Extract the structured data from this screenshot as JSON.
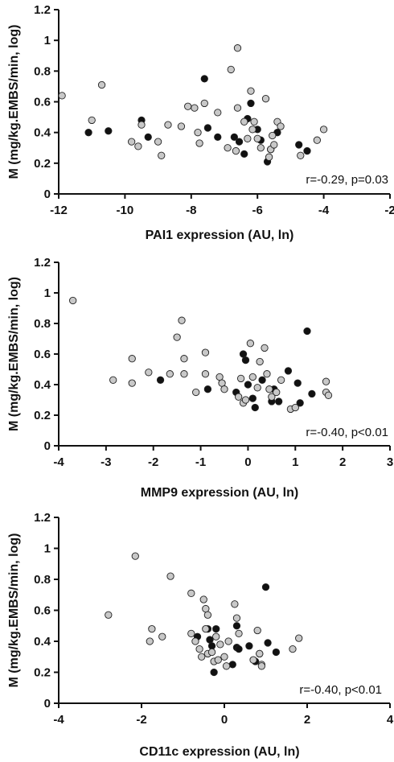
{
  "colors": {
    "filled": "#111111",
    "open": "#c8c8c8",
    "stroke": "#222222"
  },
  "chart_data": [
    {
      "type": "scatter",
      "xlabel": "PAI1 expression (AU, ln)",
      "ylabel": "M (mg/kg.EMBS/min, log)",
      "xlim": [
        -12,
        -2
      ],
      "ylim": [
        0,
        1.2
      ],
      "xticks": [
        "-12",
        "-10",
        "-8",
        "-6",
        "-4",
        "-2"
      ],
      "yticks": [
        "0",
        "0.2",
        "0.4",
        "0.6",
        "0.8",
        "1",
        "1.2"
      ],
      "annotation": "r=-0.29, p=0.03",
      "series": [
        {
          "style": "filled",
          "points": [
            [
              -11.1,
              0.4
            ],
            [
              -10.5,
              0.41
            ],
            [
              -9.5,
              0.48
            ],
            [
              -9.3,
              0.37
            ],
            [
              -7.6,
              0.75
            ],
            [
              -7.5,
              0.43
            ],
            [
              -7.2,
              0.37
            ],
            [
              -6.7,
              0.37
            ],
            [
              -6.55,
              0.34
            ],
            [
              -6.4,
              0.26
            ],
            [
              -6.3,
              0.49
            ],
            [
              -6.2,
              0.59
            ],
            [
              -6.0,
              0.42
            ],
            [
              -5.9,
              0.35
            ],
            [
              -5.7,
              0.21
            ],
            [
              -5.6,
              0.29
            ],
            [
              -5.4,
              0.4
            ],
            [
              -4.75,
              0.32
            ],
            [
              -4.5,
              0.28
            ]
          ]
        },
        {
          "style": "open",
          "points": [
            [
              -11.9,
              0.64
            ],
            [
              -11.0,
              0.48
            ],
            [
              -10.7,
              0.71
            ],
            [
              -9.8,
              0.34
            ],
            [
              -9.6,
              0.31
            ],
            [
              -9.5,
              0.45
            ],
            [
              -9.0,
              0.34
            ],
            [
              -8.9,
              0.25
            ],
            [
              -8.7,
              0.45
            ],
            [
              -8.3,
              0.44
            ],
            [
              -8.1,
              0.57
            ],
            [
              -7.9,
              0.56
            ],
            [
              -7.8,
              0.4
            ],
            [
              -7.75,
              0.33
            ],
            [
              -7.6,
              0.59
            ],
            [
              -7.2,
              0.53
            ],
            [
              -6.9,
              0.3
            ],
            [
              -6.8,
              0.81
            ],
            [
              -6.65,
              0.28
            ],
            [
              -6.6,
              0.95
            ],
            [
              -6.6,
              0.56
            ],
            [
              -6.4,
              0.47
            ],
            [
              -6.3,
              0.36
            ],
            [
              -6.2,
              0.67
            ],
            [
              -6.15,
              0.42
            ],
            [
              -6.1,
              0.47
            ],
            [
              -6.0,
              0.36
            ],
            [
              -5.9,
              0.3
            ],
            [
              -5.75,
              0.62
            ],
            [
              -5.65,
              0.24
            ],
            [
              -5.6,
              0.29
            ],
            [
              -5.55,
              0.38
            ],
            [
              -5.5,
              0.32
            ],
            [
              -5.4,
              0.47
            ],
            [
              -5.3,
              0.44
            ],
            [
              -4.7,
              0.25
            ],
            [
              -4.2,
              0.35
            ],
            [
              -4.0,
              0.42
            ]
          ]
        }
      ]
    },
    {
      "type": "scatter",
      "xlabel": "MMP9 expression (AU, ln)",
      "ylabel": "M (mg/kg.EMBS/min, log)",
      "xlim": [
        -4,
        3
      ],
      "ylim": [
        0,
        1.2
      ],
      "xticks": [
        "-4",
        "-3",
        "-2",
        "-1",
        "0",
        "1",
        "2",
        "3"
      ],
      "yticks": [
        "0",
        "0.2",
        "0.4",
        "0.6",
        "0.8",
        "1",
        "1.2"
      ],
      "annotation": "r=-0.40, p<0.01",
      "series": [
        {
          "style": "filled",
          "points": [
            [
              -1.85,
              0.43
            ],
            [
              -0.85,
              0.37
            ],
            [
              -0.25,
              0.35
            ],
            [
              -0.1,
              0.6
            ],
            [
              -0.05,
              0.56
            ],
            [
              0.0,
              0.4
            ],
            [
              0.1,
              0.31
            ],
            [
              0.15,
              0.25
            ],
            [
              0.3,
              0.43
            ],
            [
              0.5,
              0.29
            ],
            [
              0.55,
              0.37
            ],
            [
              0.65,
              0.29
            ],
            [
              0.85,
              0.49
            ],
            [
              1.05,
              0.41
            ],
            [
              1.1,
              0.28
            ],
            [
              1.25,
              0.75
            ],
            [
              1.35,
              0.34
            ]
          ]
        },
        {
          "style": "open",
          "points": [
            [
              -3.7,
              0.95
            ],
            [
              -2.85,
              0.43
            ],
            [
              -2.45,
              0.57
            ],
            [
              -2.45,
              0.41
            ],
            [
              -2.1,
              0.48
            ],
            [
              -1.65,
              0.47
            ],
            [
              -1.5,
              0.71
            ],
            [
              -1.4,
              0.82
            ],
            [
              -1.35,
              0.47
            ],
            [
              -1.35,
              0.57
            ],
            [
              -1.1,
              0.35
            ],
            [
              -0.9,
              0.61
            ],
            [
              -0.9,
              0.47
            ],
            [
              -0.6,
              0.45
            ],
            [
              -0.55,
              0.41
            ],
            [
              -0.5,
              0.37
            ],
            [
              -0.2,
              0.32
            ],
            [
              -0.15,
              0.44
            ],
            [
              -0.1,
              0.28
            ],
            [
              -0.05,
              0.3
            ],
            [
              0.05,
              0.67
            ],
            [
              0.1,
              0.45
            ],
            [
              0.2,
              0.38
            ],
            [
              0.25,
              0.55
            ],
            [
              0.35,
              0.64
            ],
            [
              0.4,
              0.47
            ],
            [
              0.45,
              0.37
            ],
            [
              0.5,
              0.32
            ],
            [
              0.6,
              0.35
            ],
            [
              0.7,
              0.43
            ],
            [
              0.9,
              0.24
            ],
            [
              1.0,
              0.25
            ],
            [
              1.65,
              0.42
            ],
            [
              1.65,
              0.35
            ],
            [
              1.7,
              0.33
            ]
          ]
        }
      ]
    },
    {
      "type": "scatter",
      "xlabel": "CD11c expression (AU, ln)",
      "ylabel": "M (mg/kg.EMBS/min, log)",
      "xlim": [
        -4,
        4
      ],
      "ylim": [
        0,
        1.2
      ],
      "xticks": [
        "-4",
        "-2",
        "0",
        "2",
        "4"
      ],
      "yticks": [
        "0",
        "0.2",
        "0.4",
        "0.6",
        "0.8",
        "1",
        "1.2"
      ],
      "annotation": "r=-0.40, p<0.01",
      "series": [
        {
          "style": "filled",
          "points": [
            [
              -0.65,
              0.43
            ],
            [
              -0.4,
              0.48
            ],
            [
              -0.35,
              0.41
            ],
            [
              -0.3,
              0.37
            ],
            [
              -0.25,
              0.2
            ],
            [
              -0.2,
              0.48
            ],
            [
              0.2,
              0.25
            ],
            [
              0.3,
              0.36
            ],
            [
              0.3,
              0.5
            ],
            [
              0.35,
              0.35
            ],
            [
              0.6,
              0.37
            ],
            [
              0.75,
              0.27
            ],
            [
              0.85,
              0.32
            ],
            [
              1.0,
              0.75
            ],
            [
              1.05,
              0.39
            ],
            [
              1.25,
              0.33
            ]
          ]
        },
        {
          "style": "open",
          "points": [
            [
              -2.8,
              0.57
            ],
            [
              -2.15,
              0.95
            ],
            [
              -1.75,
              0.48
            ],
            [
              -1.8,
              0.4
            ],
            [
              -1.5,
              0.43
            ],
            [
              -1.3,
              0.82
            ],
            [
              -0.8,
              0.71
            ],
            [
              -0.8,
              0.45
            ],
            [
              -0.7,
              0.4
            ],
            [
              -0.6,
              0.35
            ],
            [
              -0.55,
              0.3
            ],
            [
              -0.5,
              0.67
            ],
            [
              -0.45,
              0.61
            ],
            [
              -0.45,
              0.48
            ],
            [
              -0.4,
              0.57
            ],
            [
              -0.4,
              0.32
            ],
            [
              -0.3,
              0.33
            ],
            [
              -0.25,
              0.27
            ],
            [
              -0.2,
              0.43
            ],
            [
              -0.15,
              0.28
            ],
            [
              -0.1,
              0.38
            ],
            [
              0.0,
              0.3
            ],
            [
              0.05,
              0.24
            ],
            [
              0.1,
              0.4
            ],
            [
              0.25,
              0.64
            ],
            [
              0.3,
              0.55
            ],
            [
              0.35,
              0.45
            ],
            [
              0.7,
              0.28
            ],
            [
              0.8,
              0.47
            ],
            [
              0.85,
              0.32
            ],
            [
              0.9,
              0.25
            ],
            [
              0.9,
              0.24
            ],
            [
              1.65,
              0.35
            ],
            [
              1.8,
              0.42
            ]
          ]
        }
      ]
    }
  ]
}
